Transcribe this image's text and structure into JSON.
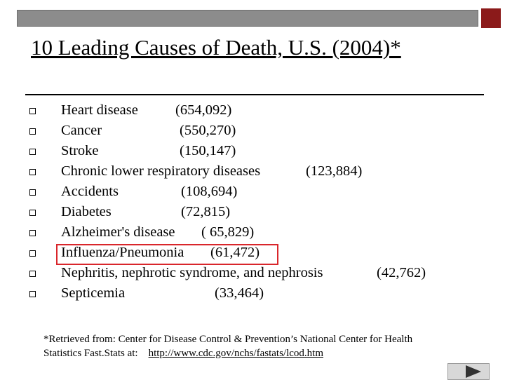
{
  "title": "10 Leading Causes of Death, U.S. (2004)*",
  "causes": [
    {
      "name": "Heart disease",
      "count": "(654,092)"
    },
    {
      "name": "Cancer",
      "count": "(550,270)"
    },
    {
      "name": "Stroke",
      "count": "(150,147)"
    },
    {
      "name": "Chronic lower respiratory diseases",
      "count": "(123,884)"
    },
    {
      "name": "Accidents",
      "count": "(108,694)"
    },
    {
      "name": "Diabetes",
      "count": "(72,815)"
    },
    {
      "name": "Alzheimer's disease",
      "count": "( 65,829)"
    },
    {
      "name": "Influenza/Pneumonia",
      "count": "(61,472)"
    },
    {
      "name": "Nephritis, nephrotic syndrome, and nephrosis",
      "count": "(42,762)"
    },
    {
      "name": "Septicemia",
      "count": "(33,464)"
    }
  ],
  "footnote": {
    "line1": "*Retrieved from: Center for Disease Control & Prevention’s National Center for Health",
    "line2_prefix": "Statistics Fast.Stats at:",
    "link": "http://www.cdc.gov/nchs/fastats/lcod.htm"
  },
  "colors": {
    "highlight": "#d9262b",
    "top_bar": "#8c8c8c",
    "corner_square": "#8b1a1a"
  }
}
